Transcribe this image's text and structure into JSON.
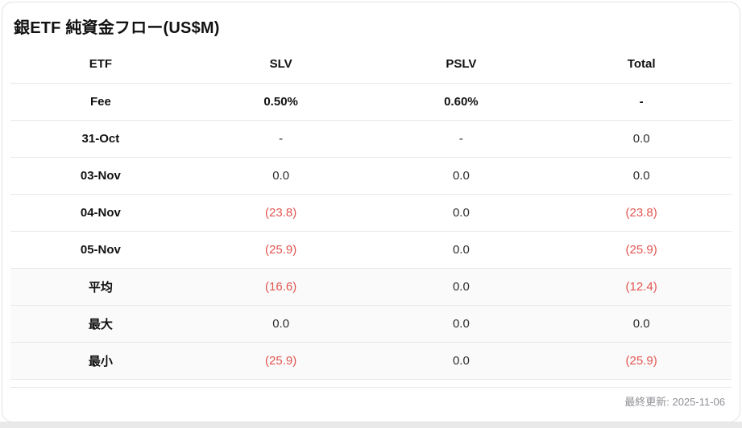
{
  "title": "銀ETF 純資金フロー(US$M)",
  "colors": {
    "negative_value": "#e25550",
    "label_text": "#111111",
    "value_text": "#2b2b2b",
    "summary_row_bg": "#fafafa",
    "row_border": "#e8e8e8",
    "card_border": "#e3e3e3",
    "footer_text": "#8f8f96"
  },
  "table": {
    "columns": [
      "ETF",
      "SLV",
      "PSLV",
      "Total"
    ],
    "rows": [
      {
        "label": "Fee",
        "values": [
          "0.50%",
          "0.60%",
          "-"
        ]
      },
      {
        "label": "31-Oct",
        "values": [
          "-",
          "-",
          "0.0"
        ]
      },
      {
        "label": "03-Nov",
        "values": [
          "0.0",
          "0.0",
          "0.0"
        ]
      },
      {
        "label": "04-Nov",
        "values": [
          "(23.8)",
          "0.0",
          "(23.8)"
        ]
      },
      {
        "label": "05-Nov",
        "values": [
          "(25.9)",
          "0.0",
          "(25.9)"
        ]
      },
      {
        "label": "平均",
        "values": [
          "(16.6)",
          "0.0",
          "(12.4)"
        ]
      },
      {
        "label": "最大",
        "values": [
          "0.0",
          "0.0",
          "0.0"
        ]
      },
      {
        "label": "最小",
        "values": [
          "(25.9)",
          "0.0",
          "(25.9)"
        ]
      }
    ]
  },
  "footer": {
    "last_updated": "最終更新: 2025-11-06"
  }
}
